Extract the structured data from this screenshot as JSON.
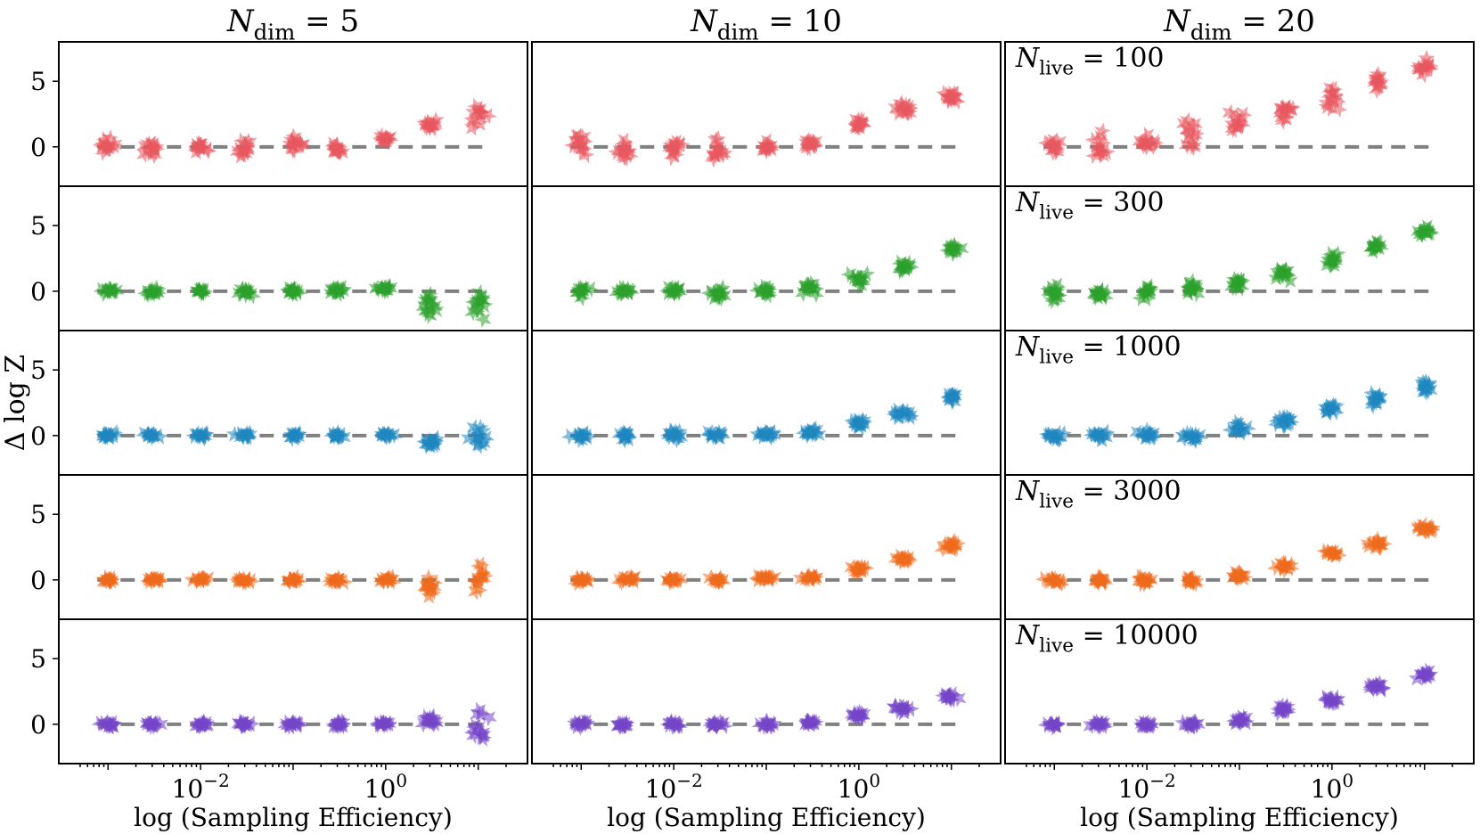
{
  "chart_data": {
    "type": "scatter",
    "grid": false,
    "marker": "star",
    "column_titles": [
      {
        "label": "N",
        "sub": "dim",
        "rhs": "= 5"
      },
      {
        "label": "N",
        "sub": "dim",
        "rhs": "= 10"
      },
      {
        "label": "N",
        "sub": "dim",
        "rhs": "= 20"
      }
    ],
    "row_labels": [
      {
        "label": "N",
        "sub": "live",
        "rhs": "= 100"
      },
      {
        "label": "N",
        "sub": "live",
        "rhs": "= 300"
      },
      {
        "label": "N",
        "sub": "live",
        "rhs": "= 1000"
      },
      {
        "label": "N",
        "sub": "live",
        "rhs": "= 3000"
      },
      {
        "label": "N",
        "sub": "live",
        "rhs": "= 10000"
      }
    ],
    "row_colors": [
      "#e8575f",
      "#2ca02c",
      "#1f87c0",
      "#ee6a1c",
      "#7446c9"
    ],
    "xlabel": "log (Sampling Efficiency)",
    "ylabel": "Δ log Z",
    "xscale": "log",
    "x_tick_values": [
      0.01,
      1
    ],
    "x_tick_labels": [
      {
        "base": "10",
        "exp": "−2"
      },
      {
        "base": "10",
        "exp": "0"
      }
    ],
    "xlim": [
      0.0005,
      20
    ],
    "ylim": [
      -3,
      8
    ],
    "y_ticks": [
      0,
      5
    ],
    "reference_line": 0,
    "x": [
      0.001,
      0.003,
      0.01,
      0.03,
      0.1,
      0.3,
      1,
      3,
      10
    ],
    "panels": [
      [
        {
          "mean": [
            0.1,
            -0.2,
            0.0,
            -0.1,
            0.2,
            -0.1,
            0.6,
            1.7,
            2.1
          ],
          "spread": [
            0.6,
            0.8,
            0.5,
            0.6,
            0.7,
            0.5,
            0.3,
            0.4,
            1.0
          ]
        },
        {
          "mean": [
            0.0,
            0.0,
            0.0,
            0.0,
            0.0,
            0.0,
            0.2,
            -1.0,
            -1.0
          ],
          "spread": [
            0.3,
            0.3,
            0.2,
            0.3,
            0.3,
            0.3,
            0.3,
            1.3,
            1.4
          ]
        },
        {
          "mean": [
            0.0,
            0.0,
            0.0,
            0.0,
            0.0,
            0.0,
            0.0,
            -0.5,
            -0.2
          ],
          "spread": [
            0.2,
            0.2,
            0.2,
            0.3,
            0.2,
            0.2,
            0.2,
            0.4,
            1.2
          ]
        },
        {
          "mean": [
            0.0,
            0.0,
            0.0,
            0.0,
            0.0,
            0.0,
            0.0,
            -0.6,
            0.4
          ],
          "spread": [
            0.2,
            0.2,
            0.2,
            0.2,
            0.2,
            0.2,
            0.2,
            1.0,
            1.4
          ]
        },
        {
          "mean": [
            0.0,
            0.0,
            0.0,
            0.0,
            0.0,
            0.0,
            0.0,
            0.3,
            -0.2
          ],
          "spread": [
            0.2,
            0.2,
            0.2,
            0.2,
            0.2,
            0.2,
            0.2,
            0.5,
            1.4
          ]
        }
      ],
      [
        {
          "mean": [
            0.3,
            -0.3,
            0.0,
            -0.1,
            0.0,
            0.3,
            1.8,
            2.9,
            3.8
          ],
          "spread": [
            0.8,
            1.1,
            0.8,
            0.8,
            0.5,
            0.4,
            0.5,
            0.6,
            0.5
          ]
        },
        {
          "mean": [
            0.0,
            0.1,
            0.0,
            -0.1,
            0.0,
            0.2,
            0.9,
            1.9,
            3.2
          ],
          "spread": [
            0.4,
            0.3,
            0.4,
            0.5,
            0.3,
            0.5,
            0.4,
            0.4,
            0.4
          ]
        },
        {
          "mean": [
            0.0,
            0.0,
            0.1,
            0.1,
            0.1,
            0.2,
            0.9,
            1.7,
            2.9
          ],
          "spread": [
            0.3,
            0.3,
            0.3,
            0.3,
            0.3,
            0.3,
            0.4,
            0.4,
            0.4
          ]
        },
        {
          "mean": [
            0.0,
            0.0,
            0.0,
            0.0,
            0.1,
            0.2,
            0.8,
            1.6,
            2.6
          ],
          "spread": [
            0.2,
            0.2,
            0.2,
            0.2,
            0.2,
            0.2,
            0.3,
            0.3,
            0.3
          ]
        },
        {
          "mean": [
            0.0,
            0.0,
            0.0,
            0.0,
            0.0,
            0.1,
            0.7,
            1.2,
            2.1
          ],
          "spread": [
            0.2,
            0.2,
            0.2,
            0.2,
            0.2,
            0.2,
            0.3,
            0.3,
            0.3
          ]
        }
      ],
      [
        {
          "mean": [
            -0.1,
            -0.2,
            0.3,
            0.9,
            1.9,
            2.8,
            3.6,
            4.9,
            6.1
          ],
          "spread": [
            0.9,
            1.2,
            0.7,
            1.0,
            1.0,
            1.0,
            0.9,
            0.8,
            0.6
          ]
        },
        {
          "mean": [
            -0.1,
            -0.2,
            0.0,
            0.3,
            0.6,
            1.4,
            2.3,
            3.3,
            4.5
          ],
          "spread": [
            0.6,
            0.6,
            0.5,
            0.6,
            0.6,
            0.5,
            0.6,
            0.5,
            0.4
          ]
        },
        {
          "mean": [
            0.0,
            0.0,
            0.0,
            -0.1,
            0.5,
            1.1,
            2.0,
            2.8,
            3.8
          ],
          "spread": [
            0.3,
            0.3,
            0.3,
            0.5,
            0.4,
            0.4,
            0.4,
            0.5,
            0.5
          ]
        },
        {
          "mean": [
            0.0,
            0.0,
            0.0,
            0.0,
            0.3,
            1.0,
            2.0,
            2.8,
            3.9
          ],
          "spread": [
            0.3,
            0.3,
            0.3,
            0.3,
            0.3,
            0.3,
            0.3,
            0.3,
            0.3
          ]
        },
        {
          "mean": [
            0.0,
            0.0,
            0.0,
            0.0,
            0.3,
            1.1,
            1.9,
            2.9,
            3.7
          ],
          "spread": [
            0.2,
            0.2,
            0.2,
            0.2,
            0.3,
            0.3,
            0.3,
            0.3,
            0.3
          ]
        }
      ]
    ]
  }
}
